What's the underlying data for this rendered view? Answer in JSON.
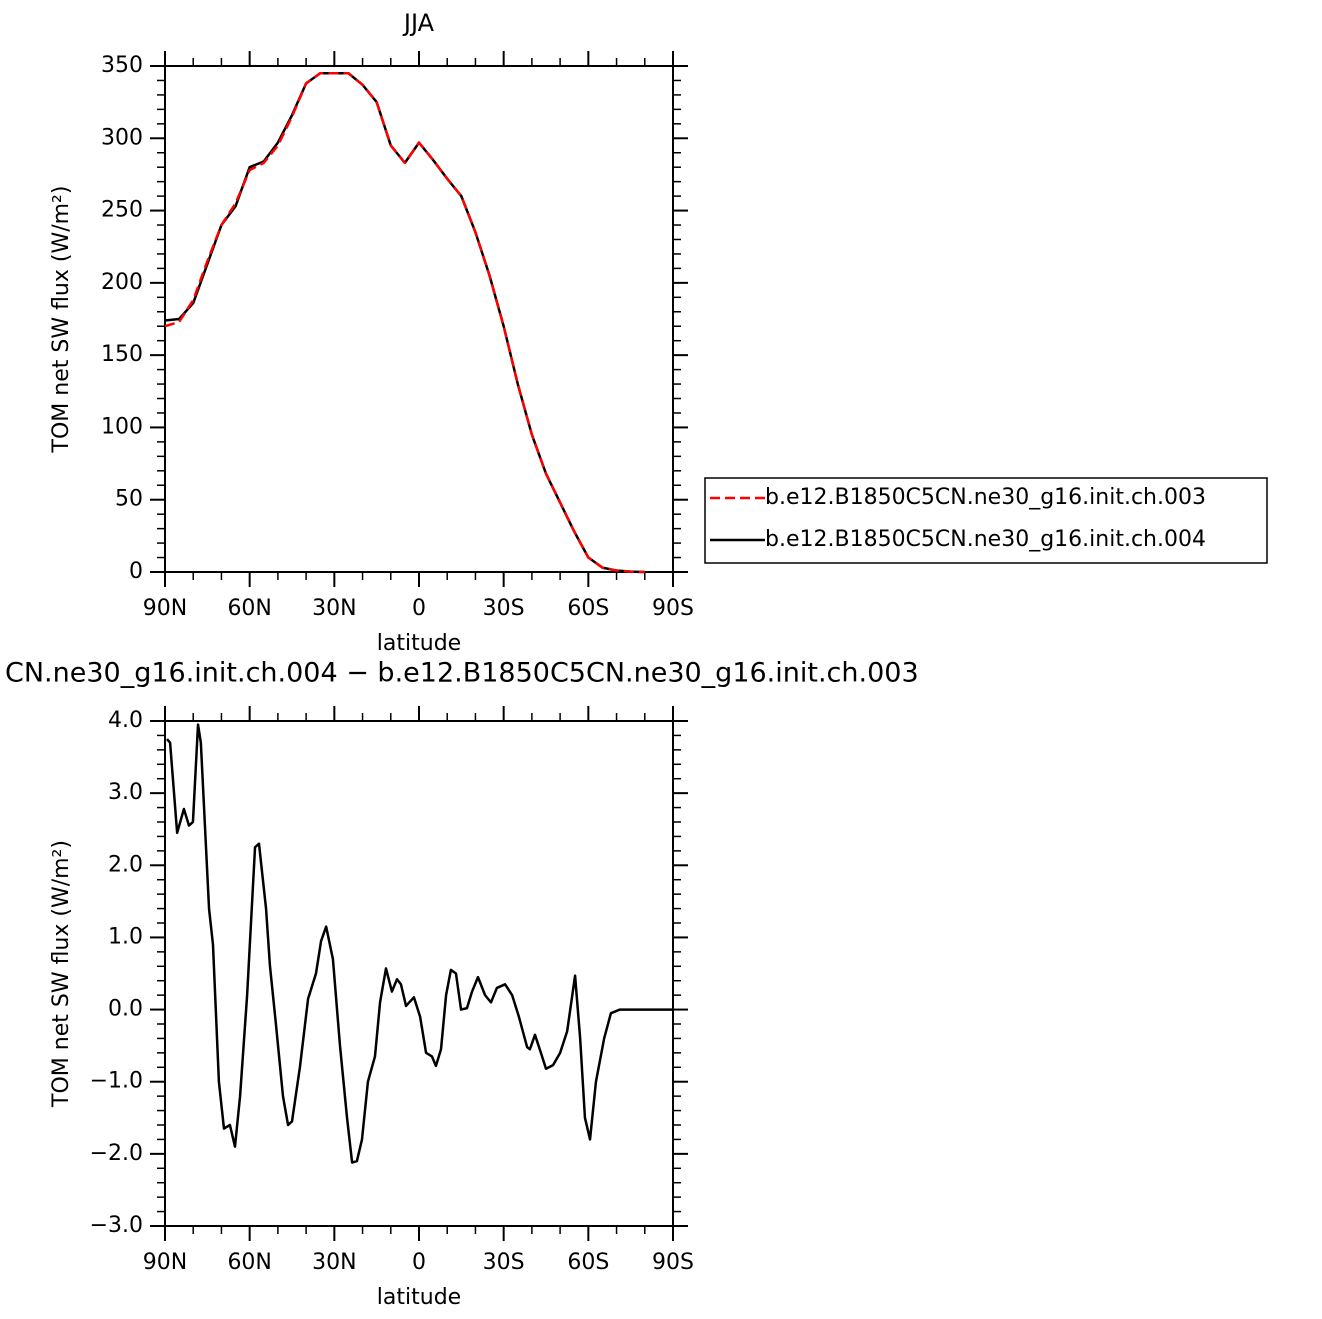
{
  "chart_data": [
    {
      "type": "line",
      "title": "JJA",
      "xlabel": "latitude",
      "ylabel": "TOM net SW flux (W/m²)",
      "x": [
        90,
        85,
        80,
        75,
        70,
        65,
        60,
        55,
        50,
        45,
        40,
        35,
        30,
        25,
        20,
        15,
        10,
        5,
        0,
        -5,
        -10,
        -15,
        -20,
        -25,
        -30,
        -35,
        -40,
        -45,
        -50,
        -55,
        -60,
        -65,
        -70,
        -75,
        -80
      ],
      "xlim": [
        90,
        -90
      ],
      "xticks": [
        {
          "value": 90,
          "label": "90N"
        },
        {
          "value": 60,
          "label": "60N"
        },
        {
          "value": 30,
          "label": "30N"
        },
        0,
        {
          "value": -30,
          "label": "30S"
        },
        {
          "value": -60,
          "label": "60S"
        },
        {
          "value": -90,
          "label": "90S"
        }
      ],
      "ylim": [
        0,
        350
      ],
      "yticks": [
        0,
        50,
        100,
        150,
        200,
        250,
        300,
        350
      ],
      "legend": "right",
      "series": [
        {
          "name": "b.e12.B1850C5CN.ne30_g16.init.ch.003",
          "color": "#ff0000",
          "dashed": true,
          "values": [
            170,
            173,
            188,
            215,
            240,
            255,
            278,
            283,
            295,
            315,
            338,
            345,
            345,
            345,
            337,
            325,
            295,
            283,
            297,
            285,
            272,
            260,
            235,
            205,
            170,
            130,
            95,
            68,
            48,
            28,
            10,
            3,
            1,
            0.3,
            0
          ]
        },
        {
          "name": "b.e12.B1850C5CN.ne30_g16.init.ch.004",
          "color": "#000000",
          "dashed": false,
          "values": [
            174,
            175,
            186,
            213,
            240,
            253,
            280,
            284,
            297,
            316,
            338,
            345,
            345,
            345,
            337,
            325,
            295,
            283,
            297,
            285,
            272,
            260,
            235,
            205,
            170,
            130,
            95,
            68,
            48,
            28,
            10,
            3,
            1,
            0.3,
            0
          ]
        }
      ]
    },
    {
      "type": "line",
      "title": "CN.ne30_g16.init.ch.004 − b.e12.B1850C5CN.ne30_g16.init.ch.003",
      "xlabel": "latitude",
      "ylabel": "TOM net SW flux (W/m²)",
      "x": [
        89.3,
        88.2,
        85.7,
        83.3,
        81.5,
        80.1,
        78.3,
        77.3,
        74.4,
        73,
        70.9,
        69.1,
        67,
        65.2,
        63.4,
        60.9,
        58.1,
        56.7,
        54.2,
        52.8,
        50.7,
        48.2,
        46.4,
        45,
        42.2,
        39.3,
        36.5,
        34.7,
        32.9,
        30.5,
        28,
        25.5,
        23.7,
        22,
        20.2,
        18.1,
        15.6,
        13.8,
        11.7,
        9.6,
        7.8,
        6.4,
        4.6,
        1.8,
        -0.4,
        -2.5,
        -4.6,
        -6,
        -7.8,
        -9.6,
        -11.3,
        -13.1,
        -14.9,
        -17,
        -18.8,
        -20.9,
        -23.4,
        -25.5,
        -27.6,
        -30.5,
        -33,
        -35.4,
        -38.3,
        -39.3,
        -41.1,
        -43.2,
        -45,
        -47.5,
        -50,
        -52.5,
        -55.3,
        -57.1,
        -58.8,
        -60.6,
        -62.7,
        -65.6,
        -68,
        -71.2,
        -90
      ],
      "xlim": [
        90,
        -90
      ],
      "xticks": [
        {
          "value": 90,
          "label": "90N"
        },
        {
          "value": 60,
          "label": "60N"
        },
        {
          "value": 30,
          "label": "30N"
        },
        0,
        {
          "value": -30,
          "label": "30S"
        },
        {
          "value": -60,
          "label": "60S"
        },
        {
          "value": -90,
          "label": "90S"
        }
      ],
      "ylim": [
        -3,
        4
      ],
      "yticks": [
        {
          "value": -3,
          "label": "−3.0"
        },
        {
          "value": -2,
          "label": "−2.0"
        },
        {
          "value": -1,
          "label": "−1.0"
        },
        {
          "value": 0,
          "label": "0.0"
        },
        {
          "value": 1,
          "label": "1.0"
        },
        {
          "value": 2,
          "label": "2.0"
        },
        {
          "value": 3,
          "label": "3.0"
        },
        {
          "value": 4,
          "label": "4.0"
        }
      ],
      "series": [
        {
          "color": "#000000",
          "dashed": false,
          "values": [
            3.75,
            3.7,
            2.45,
            2.78,
            2.55,
            2.6,
            3.95,
            3.7,
            1.4,
            0.9,
            -1.0,
            -1.65,
            -1.6,
            -1.9,
            -1.2,
            0.2,
            2.25,
            2.3,
            1.4,
            0.6,
            -0.2,
            -1.2,
            -1.6,
            -1.55,
            -0.8,
            0.15,
            0.5,
            0.95,
            1.15,
            0.7,
            -0.5,
            -1.5,
            -2.12,
            -2.1,
            -1.8,
            -1.0,
            -0.65,
            0.1,
            0.57,
            0.25,
            0.42,
            0.35,
            0.05,
            0.17,
            -0.1,
            -0.6,
            -0.65,
            -0.78,
            -0.55,
            0.2,
            0.55,
            0.5,
            0.0,
            0.02,
            0.25,
            0.45,
            0.2,
            0.1,
            0.3,
            0.35,
            0.2,
            -0.1,
            -0.52,
            -0.55,
            -0.35,
            -0.6,
            -0.82,
            -0.77,
            -0.6,
            -0.3,
            0.47,
            -0.4,
            -1.5,
            -1.8,
            -1.0,
            -0.4,
            -0.05,
            0.0,
            0.0
          ]
        }
      ]
    }
  ]
}
